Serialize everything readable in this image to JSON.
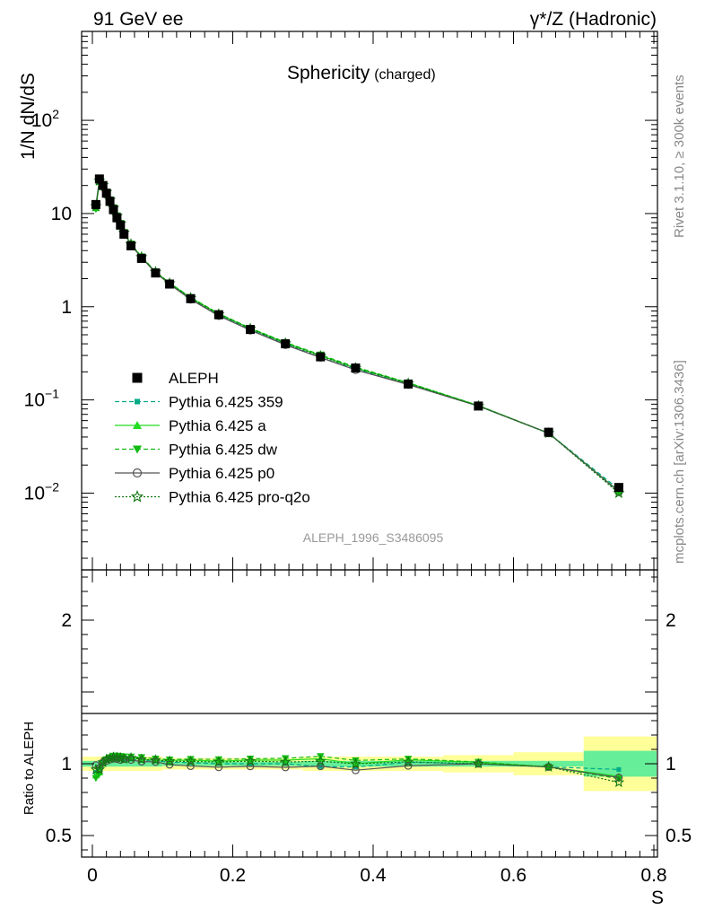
{
  "header": {
    "left": "91 GeV ee",
    "right": "γ*/Z (Hadronic)"
  },
  "title": {
    "main": "Sphericity",
    "sub": "(charged)"
  },
  "side_labels": {
    "rivet": "Rivet 3.1.10, ≥ 300k events",
    "mcplots": "mcplots.cern.ch [arXiv:1306.3436]"
  },
  "analysis_id": "ALEPH_1996_S3486095",
  "colors": {
    "data": "#000000",
    "p359": "#00aa88",
    "pa": "#22dd22",
    "pdw": "#11bb11",
    "pp0": "#555555",
    "pq2o": "#117711",
    "band_outer": "#ffff99",
    "band_inner": "#66ee99"
  },
  "chart_data": [
    {
      "type": "line",
      "ylabel": "1/N dN/dS",
      "yscale": "log",
      "xlim": [
        0,
        0.8
      ],
      "ylim": [
        0.0015,
        900
      ],
      "yticks": [
        {
          "v": 0.01,
          "base": "10",
          "exp": "−2"
        },
        {
          "v": 0.1,
          "base": "10",
          "exp": "−1"
        },
        {
          "v": 1,
          "base": "1",
          "exp": ""
        },
        {
          "v": 10,
          "base": "10",
          "exp": ""
        },
        {
          "v": 100,
          "base": "10",
          "exp": "2"
        }
      ],
      "legend_position": "lower-left",
      "x": [
        0.005,
        0.01,
        0.015,
        0.02,
        0.025,
        0.03,
        0.035,
        0.04,
        0.045,
        0.055,
        0.07,
        0.09,
        0.11,
        0.14,
        0.18,
        0.225,
        0.275,
        0.325,
        0.375,
        0.45,
        0.55,
        0.65,
        0.75
      ],
      "series": [
        {
          "name": "ALEPH",
          "key": "data",
          "marker": "square",
          "values": [
            12.5,
            23.5,
            20.0,
            16.5,
            13.5,
            11.0,
            9.0,
            7.5,
            6.0,
            4.5,
            3.3,
            2.3,
            1.75,
            1.22,
            0.82,
            0.57,
            0.4,
            0.29,
            0.22,
            0.148,
            0.086,
            0.045,
            0.0115
          ]
        },
        {
          "name": "Pythia 6.425 359",
          "key": "p359",
          "marker": "small-square",
          "dash": "5,3",
          "values": [
            11.8,
            22.5,
            20.2,
            17.0,
            14.0,
            11.5,
            9.4,
            7.8,
            6.2,
            4.65,
            3.38,
            2.35,
            1.77,
            1.23,
            0.82,
            0.57,
            0.4,
            0.285,
            0.215,
            0.15,
            0.086,
            0.044,
            0.011
          ]
        },
        {
          "name": "Pythia 6.425 a",
          "key": "pa",
          "marker": "triangle-up",
          "dash": "",
          "values": [
            11.5,
            22.0,
            20.0,
            17.0,
            14.1,
            11.6,
            9.5,
            7.9,
            6.3,
            4.7,
            3.4,
            2.36,
            1.79,
            1.25,
            0.835,
            0.585,
            0.41,
            0.3,
            0.22,
            0.152,
            0.087,
            0.044,
            0.0105
          ]
        },
        {
          "name": "Pythia 6.425 dw",
          "key": "pdw",
          "marker": "triangle-down",
          "dash": "5,3",
          "values": [
            11.2,
            21.8,
            19.9,
            17.0,
            14.1,
            11.6,
            9.5,
            7.9,
            6.3,
            4.72,
            3.45,
            2.38,
            1.8,
            1.26,
            0.845,
            0.59,
            0.415,
            0.305,
            0.225,
            0.153,
            0.087,
            0.044,
            0.0103
          ]
        },
        {
          "name": "Pythia 6.425 p0",
          "key": "pp0",
          "marker": "circle-open",
          "dash": "",
          "values": [
            12.3,
            22.8,
            20.2,
            16.8,
            13.9,
            11.4,
            9.3,
            7.7,
            6.2,
            4.62,
            3.35,
            2.33,
            1.74,
            1.2,
            0.8,
            0.56,
            0.39,
            0.285,
            0.21,
            0.146,
            0.086,
            0.044,
            0.0104
          ]
        },
        {
          "name": "Pythia 6.425 pro-q2o",
          "key": "pq2o",
          "marker": "star-open",
          "dash": "2,2",
          "values": [
            12.0,
            22.5,
            20.2,
            17.0,
            14.0,
            11.5,
            9.4,
            7.8,
            6.2,
            4.68,
            3.4,
            2.36,
            1.78,
            1.24,
            0.83,
            0.58,
            0.405,
            0.295,
            0.22,
            0.15,
            0.086,
            0.044,
            0.01
          ]
        }
      ]
    },
    {
      "type": "line",
      "xlabel": "S",
      "ylabel": "Ratio to ALEPH",
      "xlim": [
        0,
        0.8
      ],
      "ylim": [
        0.35,
        2.35
      ],
      "xticks": [
        0,
        0.2,
        0.4,
        0.6,
        0.8
      ],
      "xtick_labels": [
        "0",
        "0.2",
        "0.4",
        "0.6",
        "0.8"
      ],
      "yticks": [
        0.5,
        1,
        2
      ],
      "ytick_labels": [
        "0.5",
        "1",
        "2"
      ],
      "x": [
        0.005,
        0.01,
        0.015,
        0.02,
        0.025,
        0.03,
        0.035,
        0.04,
        0.045,
        0.055,
        0.07,
        0.09,
        0.11,
        0.14,
        0.18,
        0.225,
        0.275,
        0.325,
        0.375,
        0.45,
        0.55,
        0.65,
        0.75
      ],
      "bands": [
        {
          "x0": 0.0,
          "x1": 0.1,
          "outer": 0.05,
          "inner": 0.02
        },
        {
          "x0": 0.1,
          "x1": 0.3,
          "outer": 0.04,
          "inner": 0.015
        },
        {
          "x0": 0.3,
          "x1": 0.5,
          "outer": 0.05,
          "inner": 0.02
        },
        {
          "x0": 0.5,
          "x1": 0.6,
          "outer": 0.06,
          "inner": 0.02
        },
        {
          "x0": 0.6,
          "x1": 0.7,
          "outer": 0.08,
          "inner": 0.02
        },
        {
          "x0": 0.7,
          "x1": 0.8,
          "outer": 0.19,
          "inner": 0.09
        }
      ],
      "series": [
        {
          "key": "p359",
          "marker": "small-square",
          "dash": "5,3",
          "values": [
            0.94,
            0.96,
            1.01,
            1.03,
            1.04,
            1.045,
            1.045,
            1.04,
            1.035,
            1.033,
            1.024,
            1.02,
            1.011,
            1.008,
            1.0,
            1.0,
            1.0,
            0.98,
            0.977,
            1.01,
            1.0,
            0.978,
            0.96
          ]
        },
        {
          "key": "pa",
          "marker": "triangle-up",
          "dash": "",
          "values": [
            0.92,
            0.94,
            1.0,
            1.03,
            1.045,
            1.055,
            1.055,
            1.053,
            1.05,
            1.044,
            1.03,
            1.026,
            1.023,
            1.025,
            1.018,
            1.026,
            1.025,
            1.035,
            1.0,
            1.027,
            1.01,
            0.978,
            0.913
          ]
        },
        {
          "key": "pdw",
          "marker": "triangle-down",
          "dash": "5,3",
          "values": [
            0.9,
            0.93,
            0.995,
            1.03,
            1.044,
            1.055,
            1.055,
            1.053,
            1.05,
            1.049,
            1.045,
            1.035,
            1.029,
            1.033,
            1.03,
            1.035,
            1.038,
            1.052,
            1.023,
            1.034,
            1.012,
            0.978,
            0.896
          ]
        },
        {
          "key": "pp0",
          "marker": "circle-open",
          "dash": "",
          "values": [
            0.99,
            0.97,
            1.01,
            1.02,
            1.03,
            1.036,
            1.033,
            1.027,
            1.033,
            1.027,
            1.015,
            1.013,
            0.994,
            0.984,
            0.976,
            0.982,
            0.975,
            0.983,
            0.955,
            0.986,
            1.0,
            0.978,
            0.904
          ]
        },
        {
          "key": "pq2o",
          "marker": "star-open",
          "dash": "2,2",
          "values": [
            0.96,
            0.96,
            1.01,
            1.03,
            1.037,
            1.045,
            1.044,
            1.04,
            1.033,
            1.04,
            1.03,
            1.026,
            1.017,
            1.016,
            1.012,
            1.018,
            1.012,
            1.017,
            1.0,
            1.013,
            1.0,
            0.978,
            0.87
          ]
        }
      ]
    }
  ]
}
